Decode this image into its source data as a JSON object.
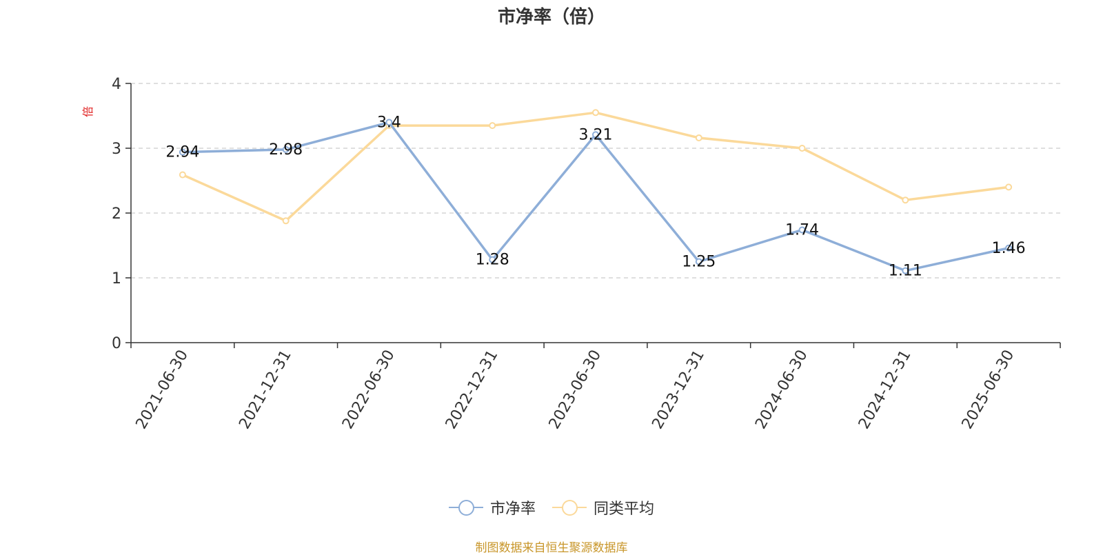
{
  "chart_data": {
    "type": "line",
    "title": "市净率（倍）",
    "ylabel": "倍",
    "categories": [
      "2021-06-30",
      "2021-12-31",
      "2022-06-30",
      "2022-12-31",
      "2023-06-30",
      "2023-12-31",
      "2024-06-30",
      "2024-12-31",
      "2025-06-30"
    ],
    "series": [
      {
        "name": "市净率",
        "color": "#8eaed8",
        "values": [
          2.94,
          2.98,
          3.4,
          1.28,
          3.21,
          1.25,
          1.74,
          1.11,
          1.46
        ],
        "labels": true
      },
      {
        "name": "同类平均",
        "color": "#fbd99a",
        "values": [
          2.59,
          1.88,
          3.35,
          3.35,
          3.55,
          3.16,
          3.0,
          2.2,
          2.4
        ],
        "labels": false
      }
    ],
    "ylim": [
      0,
      4
    ],
    "yticks": [
      0,
      1,
      2,
      3,
      4
    ],
    "grid": true,
    "legend_position": "bottom"
  },
  "source": "制图数据来自恒生聚源数据库"
}
